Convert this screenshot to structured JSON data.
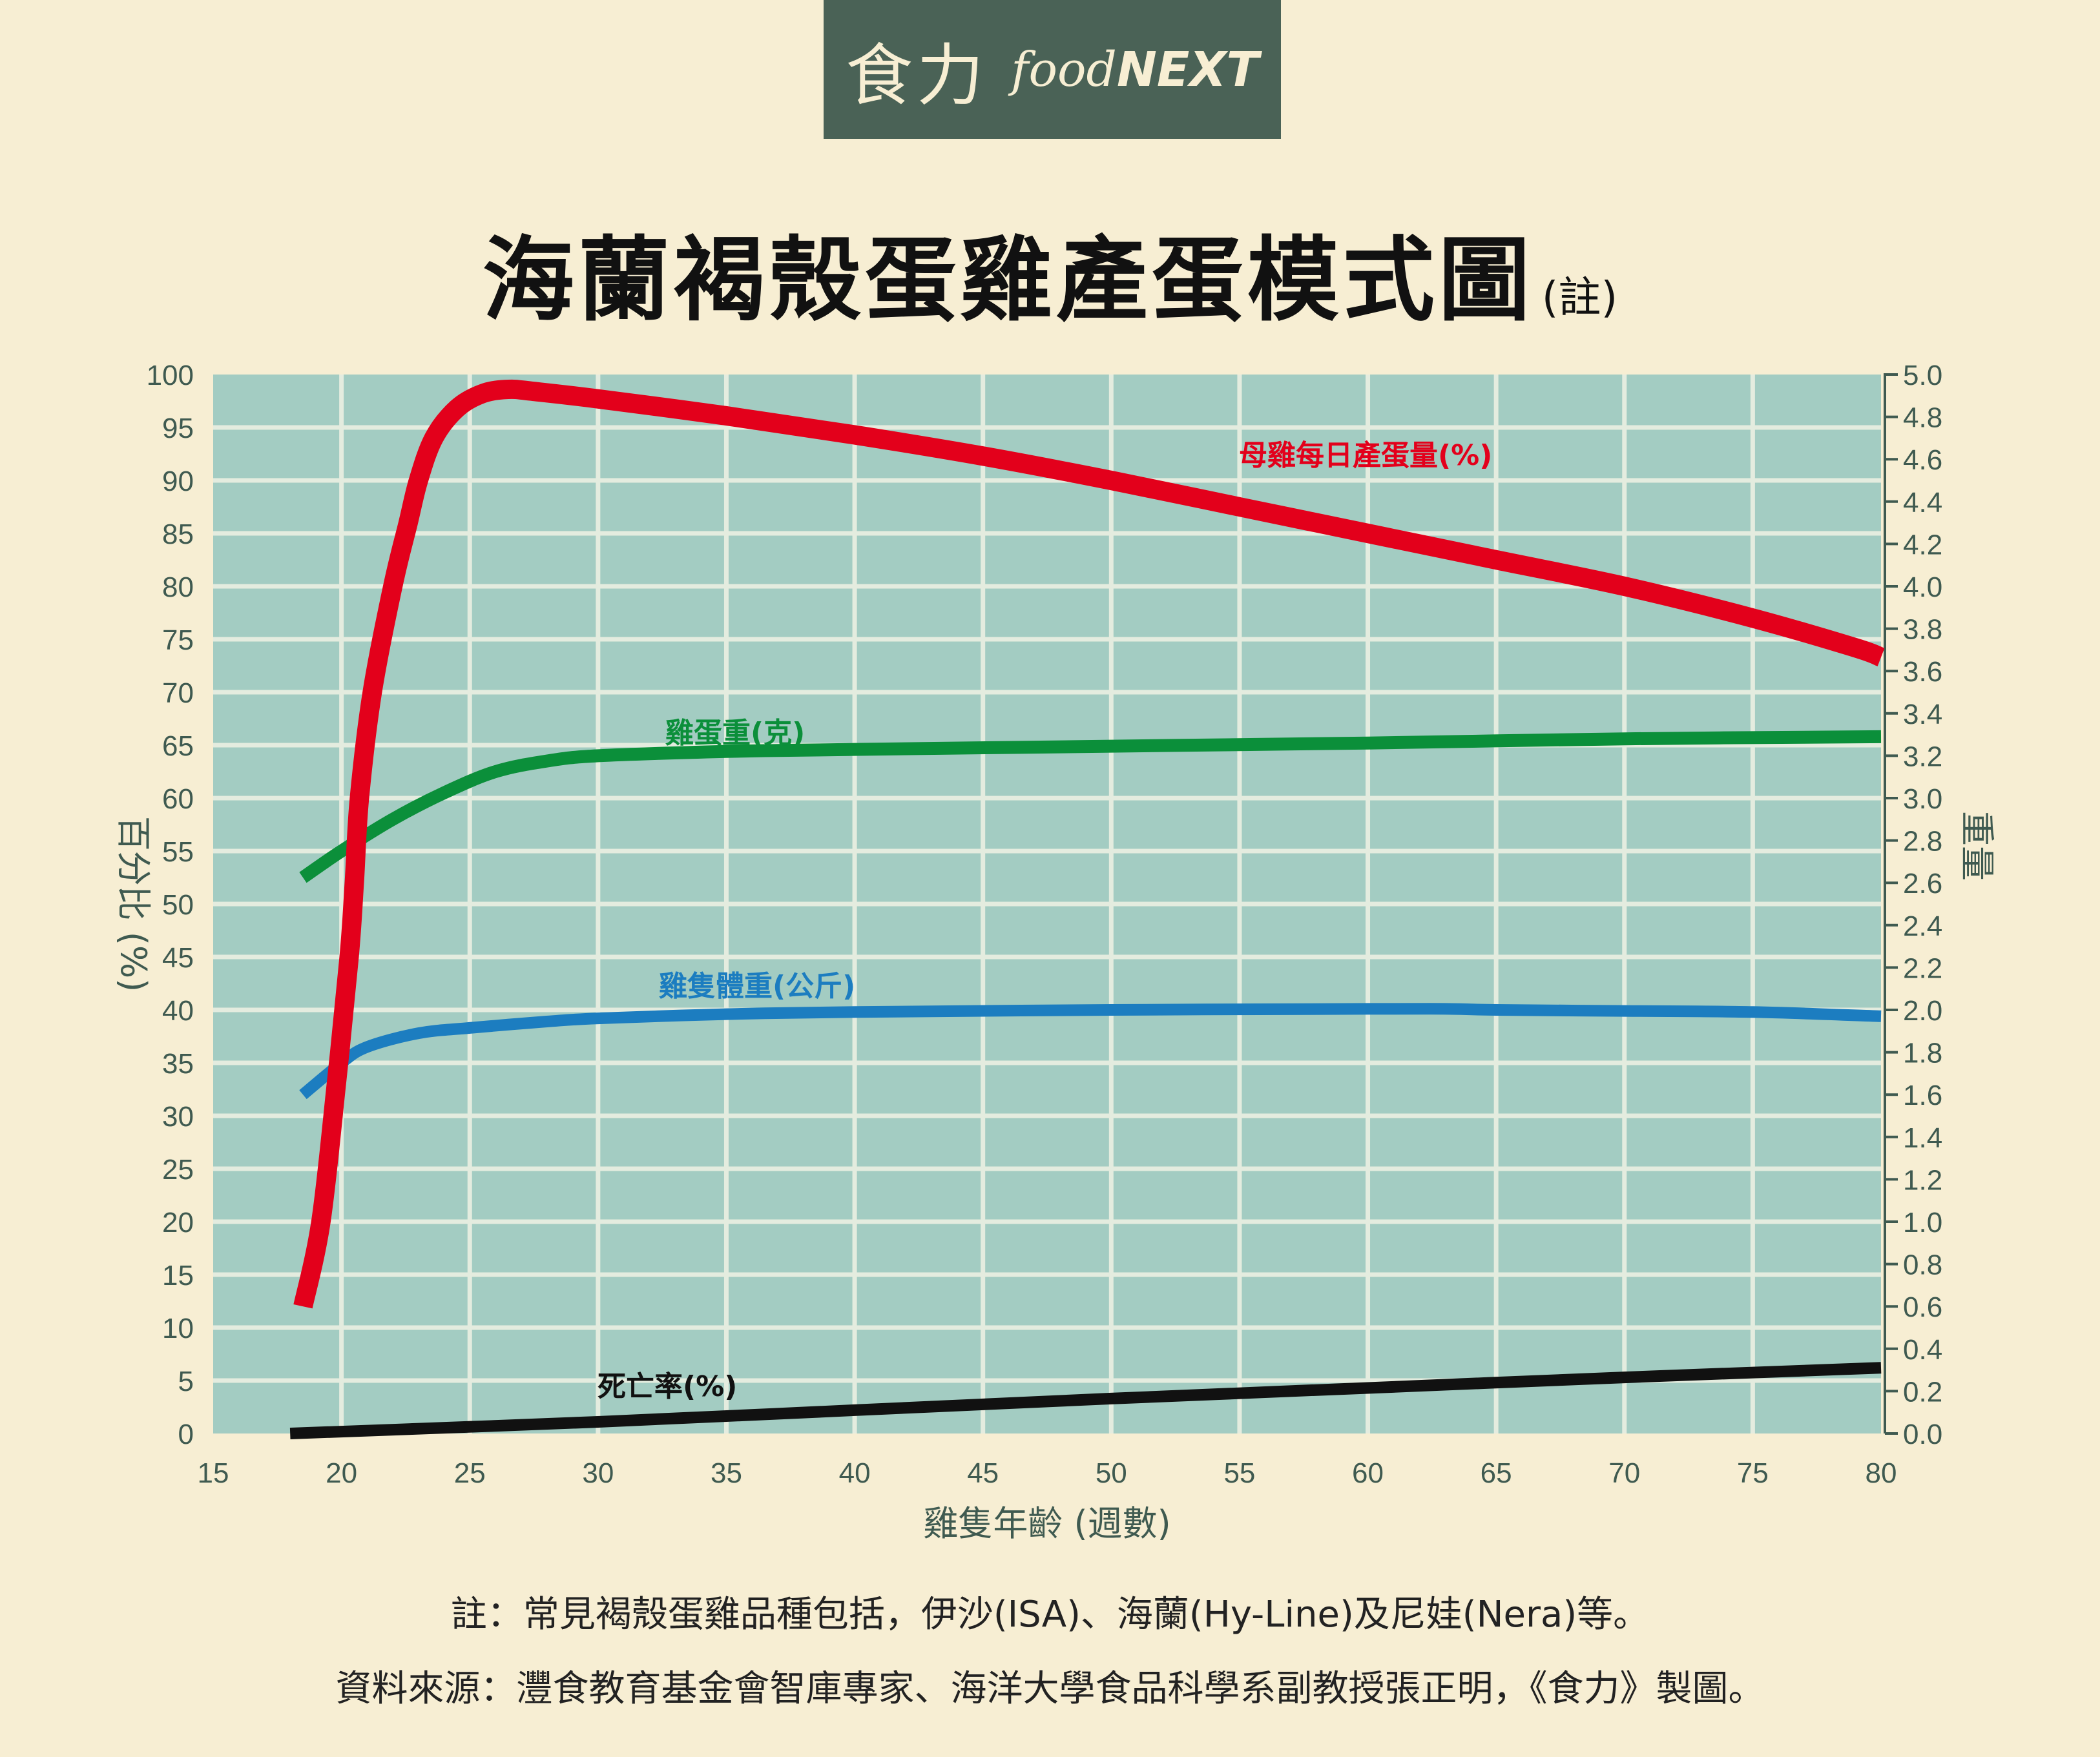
{
  "logo": {
    "cn": "食力",
    "en_prefix": "food",
    "en_brand": "NEXT"
  },
  "title": {
    "main": "海蘭褐殼蛋雞產蛋模式圖",
    "note": "(註)"
  },
  "chart_data": {
    "type": "line",
    "title": "海蘭褐殼蛋雞產蛋模式圖",
    "xlabel": "雞隻年齡 (週數)",
    "ylabel_left": "百分比 (%)",
    "ylabel_right": "重量",
    "xlim": [
      15,
      80
    ],
    "ylim_left": [
      0,
      100
    ],
    "ylim_right": [
      0,
      5.0
    ],
    "x_ticks": [
      "15",
      "20",
      "25",
      "30",
      "35",
      "40",
      "45",
      "50",
      "55",
      "60",
      "65",
      "70",
      "75",
      "80"
    ],
    "y_ticks_left": [
      "0",
      "5",
      "10",
      "15",
      "20",
      "25",
      "30",
      "35",
      "40",
      "45",
      "50",
      "55",
      "60",
      "65",
      "70",
      "75",
      "80",
      "85",
      "90",
      "95",
      "100"
    ],
    "y_ticks_right": [
      "0.0",
      "0.2",
      "0.4",
      "0.6",
      "0.8",
      "1.0",
      "1.2",
      "1.4",
      "1.6",
      "1.8",
      "2.0",
      "2.2",
      "2.4",
      "2.6",
      "2.8",
      "3.0",
      "3.2",
      "3.4",
      "3.6",
      "3.8",
      "4.0",
      "4.2",
      "4.4",
      "4.6",
      "4.8",
      "5.0"
    ],
    "grid": true,
    "series": [
      {
        "name": "母雞每日產蛋量(%)",
        "color": "#e3001b",
        "axis": "left",
        "points": [
          [
            18.5,
            12
          ],
          [
            19.2,
            20
          ],
          [
            19.8,
            33
          ],
          [
            20.3,
            45
          ],
          [
            20.5,
            52
          ],
          [
            20.7,
            60
          ],
          [
            21.2,
            70
          ],
          [
            22,
            80
          ],
          [
            22.6,
            86
          ],
          [
            23,
            90
          ],
          [
            23.6,
            94
          ],
          [
            24.5,
            96.8
          ],
          [
            25.5,
            98.2
          ],
          [
            26.5,
            98.6
          ],
          [
            27.5,
            98.4
          ],
          [
            30,
            97.7
          ],
          [
            35,
            96.1
          ],
          [
            40,
            94.3
          ],
          [
            45,
            92.3
          ],
          [
            50,
            90
          ],
          [
            55,
            87.5
          ],
          [
            60,
            85
          ],
          [
            65,
            82.5
          ],
          [
            70,
            80
          ],
          [
            75,
            77
          ],
          [
            79,
            74.2
          ],
          [
            80,
            73.3
          ]
        ]
      },
      {
        "name": "雞蛋重(克)",
        "color": "#0b8f3a",
        "axis": "left",
        "points": [
          [
            18.5,
            52.5
          ],
          [
            20,
            55
          ],
          [
            22,
            58
          ],
          [
            24,
            60.5
          ],
          [
            26,
            62.5
          ],
          [
            28,
            63.5
          ],
          [
            30,
            64
          ],
          [
            35,
            64.4
          ],
          [
            40,
            64.6
          ],
          [
            50,
            64.9
          ],
          [
            60,
            65.2
          ],
          [
            70,
            65.6
          ],
          [
            80,
            65.8
          ]
        ]
      },
      {
        "name": "雞隻體重(公斤)",
        "color": "#1c7dc0",
        "axis": "left",
        "points": [
          [
            18.5,
            32
          ],
          [
            20,
            35
          ],
          [
            21,
            36.5
          ],
          [
            23,
            37.8
          ],
          [
            25,
            38.3
          ],
          [
            28,
            38.9
          ],
          [
            30,
            39.2
          ],
          [
            35,
            39.6
          ],
          [
            40,
            39.8
          ],
          [
            50,
            40
          ],
          [
            60,
            40.1
          ],
          [
            63,
            40.1
          ],
          [
            65,
            40
          ],
          [
            70,
            39.9
          ],
          [
            75,
            39.8
          ],
          [
            80,
            39.4
          ]
        ]
      },
      {
        "name": "死亡率(%)",
        "color": "#111111",
        "axis": "left",
        "points": [
          [
            18,
            0
          ],
          [
            30,
            1.1
          ],
          [
            40,
            2.2
          ],
          [
            50,
            3.3
          ],
          [
            60,
            4.3
          ],
          [
            70,
            5.3
          ],
          [
            80,
            6.2
          ]
        ]
      }
    ]
  },
  "notes": {
    "note": "註：常見褐殼蛋雞品種包括，伊沙(ISA)、海蘭(Hy-Line)及尼娃(Nera)等。",
    "source": "資料來源：灃食教育基金會智庫專家、海洋大學食品科學系副教授張正明，《食力》製圖。"
  }
}
